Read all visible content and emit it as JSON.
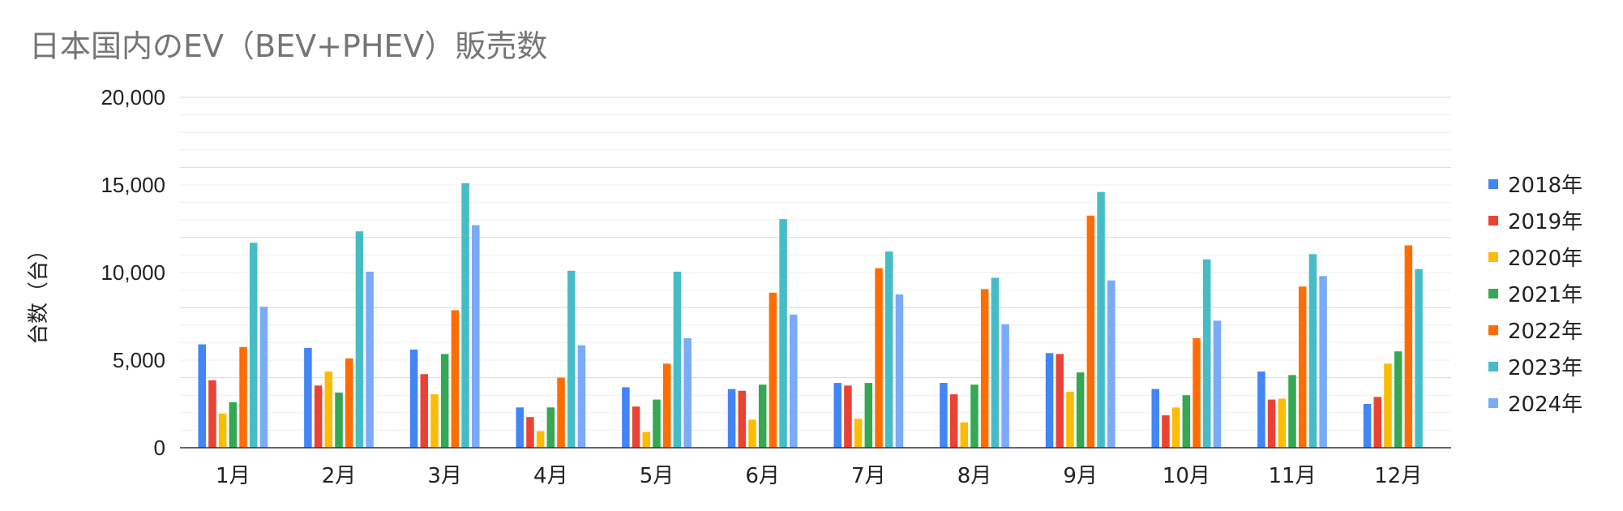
{
  "chart_data": {
    "type": "bar",
    "title": "日本国内のEV（BEV+PHEV）販売数",
    "xlabel": "",
    "ylabel": "台数（台）",
    "ylim": [
      0,
      20000
    ],
    "yticks": [
      "0",
      "5,000",
      "10,000",
      "15,000",
      "20,000"
    ],
    "grid": true,
    "legend_position": "right",
    "categories": [
      "1月",
      "2月",
      "3月",
      "4月",
      "5月",
      "6月",
      "7月",
      "8月",
      "9月",
      "10月",
      "11月",
      "12月"
    ],
    "series": [
      {
        "name": "2018年",
        "color": "#4285f4",
        "values": [
          5900,
          5700,
          5600,
          2300,
          3450,
          3350,
          3700,
          3700,
          5400,
          3350,
          4350,
          2500
        ]
      },
      {
        "name": "2019年",
        "color": "#ea4335",
        "values": [
          3850,
          3550,
          4200,
          1750,
          2350,
          3250,
          3550,
          3050,
          5350,
          1850,
          2750,
          2900
        ]
      },
      {
        "name": "2020年",
        "color": "#fbbc04",
        "values": [
          1950,
          4350,
          3050,
          950,
          900,
          1600,
          1650,
          1450,
          3200,
          2300,
          2800,
          4800
        ]
      },
      {
        "name": "2021年",
        "color": "#34a853",
        "values": [
          2600,
          3150,
          5350,
          2300,
          2750,
          3600,
          3700,
          3600,
          4300,
          3000,
          4150,
          5500
        ]
      },
      {
        "name": "2022年",
        "color": "#ff6d01",
        "values": [
          5750,
          5100,
          7850,
          4000,
          4800,
          8850,
          10250,
          9050,
          13250,
          6250,
          9200,
          11550
        ]
      },
      {
        "name": "2023年",
        "color": "#46bdc6",
        "values": [
          11700,
          12350,
          15100,
          10100,
          10050,
          13050,
          11200,
          9700,
          14600,
          10750,
          11050,
          10200
        ]
      },
      {
        "name": "2024年",
        "color": "#7baaf7",
        "values": [
          8050,
          10050,
          12700,
          5850,
          6250,
          7600,
          8750,
          7050,
          9550,
          7250,
          9800,
          null
        ]
      }
    ]
  }
}
